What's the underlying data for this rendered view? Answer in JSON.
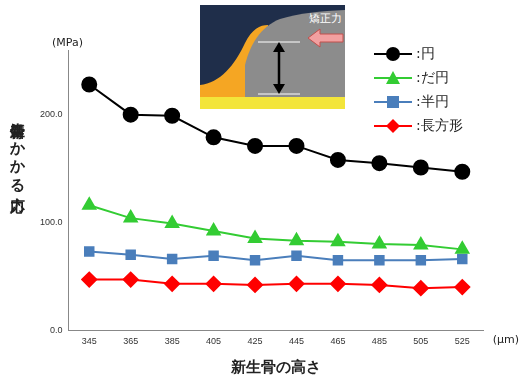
{
  "chart_data": {
    "type": "line",
    "x_label": "新生骨の高さ",
    "x_unit": "(μm)",
    "y_label": "新生骨にかかる応力",
    "y_unit": "(MPa)",
    "annotations": [
      "矯正力"
    ],
    "categories": [
      345,
      365,
      385,
      405,
      425,
      445,
      465,
      485,
      505,
      525
    ],
    "series": [
      {
        "name": ":円",
        "color": "#000000",
        "marker": "circle",
        "values": [
          228,
          200,
          199,
          179,
          171,
          171,
          158,
          155,
          151,
          147
        ]
      },
      {
        "name": ":だ円",
        "color": "#33cc33",
        "marker": "triangle",
        "values": [
          116,
          104,
          99,
          92,
          85,
          83,
          82,
          80,
          79,
          75
        ]
      },
      {
        "name": ":半円",
        "color": "#4a7ebb",
        "marker": "square",
        "values": [
          73,
          70,
          66,
          69,
          65,
          69,
          65,
          65,
          65,
          66
        ]
      },
      {
        "name": ":長方形",
        "color": "#ff0000",
        "marker": "diamond",
        "values": [
          47,
          47,
          43,
          43,
          42,
          43,
          43,
          42,
          39,
          40
        ]
      }
    ],
    "ylim": [
      0,
      260
    ],
    "yticks": [
      {
        "value": 0,
        "label": "0.0"
      },
      {
        "value": 100,
        "label": "100.0"
      },
      {
        "value": 200,
        "label": "200.0"
      }
    ],
    "grid": false,
    "legend": "upper right"
  }
}
